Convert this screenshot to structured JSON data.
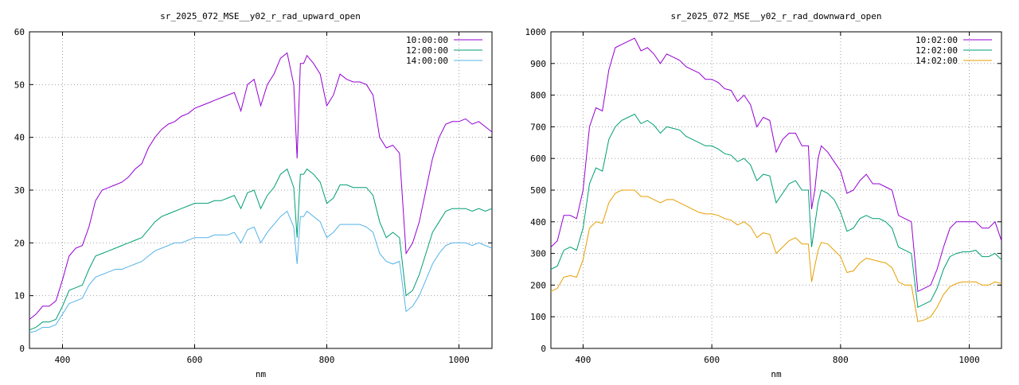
{
  "chart_data": [
    {
      "type": "line",
      "title": "sr_2025_072_MSE__y02_r_rad_upward_open",
      "xlabel": "nm",
      "ylabel": "",
      "xlim": [
        350,
        1050
      ],
      "ylim": [
        0,
        60
      ],
      "xticks": [
        400,
        600,
        800,
        1000
      ],
      "yticks": [
        0,
        10,
        20,
        30,
        40,
        50,
        60
      ],
      "grid": true,
      "legend": "top-right",
      "x": [
        350,
        360,
        370,
        380,
        390,
        400,
        410,
        420,
        430,
        440,
        450,
        460,
        470,
        480,
        490,
        500,
        510,
        520,
        530,
        540,
        550,
        560,
        570,
        580,
        590,
        600,
        610,
        620,
        630,
        640,
        650,
        660,
        670,
        680,
        690,
        700,
        710,
        720,
        730,
        740,
        750,
        755,
        760,
        765,
        770,
        780,
        790,
        800,
        810,
        820,
        830,
        840,
        850,
        860,
        870,
        880,
        890,
        900,
        910,
        920,
        930,
        940,
        950,
        960,
        970,
        980,
        990,
        1000,
        1010,
        1020,
        1030,
        1040,
        1050
      ],
      "series": [
        {
          "name": "10:00:00",
          "color": "#9400d3",
          "values": [
            5.5,
            6.5,
            8.0,
            8.0,
            9.0,
            13.0,
            17.5,
            19.0,
            19.5,
            23.0,
            28.0,
            30.0,
            30.5,
            31.0,
            31.5,
            32.5,
            34.0,
            35.0,
            38.0,
            40.0,
            41.5,
            42.5,
            43.0,
            44.0,
            44.5,
            45.5,
            46.0,
            46.5,
            47.0,
            47.5,
            48.0,
            48.5,
            45.0,
            50.0,
            51.0,
            46.0,
            50.0,
            52.0,
            55.0,
            56.0,
            50.0,
            36.0,
            54.0,
            54.0,
            55.5,
            54.0,
            52.0,
            46.0,
            48.0,
            52.0,
            51.0,
            50.5,
            50.5,
            50.0,
            48.0,
            40.0,
            38.0,
            38.5,
            37.0,
            18.0,
            20.0,
            24.0,
            30.0,
            36.0,
            40.0,
            42.5,
            43.0,
            43.0,
            43.5,
            42.5,
            43.0,
            42.0,
            41.0
          ]
        },
        {
          "name": "12:00:00",
          "color": "#009e73",
          "values": [
            3.5,
            4.0,
            5.0,
            5.0,
            5.5,
            8.0,
            11.0,
            11.5,
            12.0,
            15.0,
            17.5,
            18.0,
            18.5,
            19.0,
            19.5,
            20.0,
            20.5,
            21.0,
            22.5,
            24.0,
            25.0,
            25.5,
            26.0,
            26.5,
            27.0,
            27.5,
            27.5,
            27.5,
            28.0,
            28.0,
            28.5,
            29.0,
            26.5,
            29.5,
            30.0,
            26.5,
            29.0,
            30.5,
            33.0,
            34.0,
            30.5,
            21.0,
            33.0,
            33.0,
            34.0,
            33.0,
            31.5,
            27.5,
            28.5,
            31.0,
            31.0,
            30.5,
            30.5,
            30.5,
            29.0,
            24.0,
            21.0,
            22.0,
            21.0,
            10.0,
            11.0,
            14.0,
            18.0,
            22.0,
            24.0,
            26.0,
            26.5,
            26.5,
            26.5,
            26.0,
            26.5,
            26.0,
            26.5
          ]
        },
        {
          "name": "14:00:00",
          "color": "#56b4e9",
          "values": [
            3.0,
            3.3,
            4.0,
            4.0,
            4.5,
            6.5,
            8.5,
            9.0,
            9.5,
            12.0,
            13.5,
            14.0,
            14.5,
            15.0,
            15.0,
            15.5,
            16.0,
            16.5,
            17.5,
            18.5,
            19.0,
            19.5,
            20.0,
            20.0,
            20.5,
            21.0,
            21.0,
            21.0,
            21.5,
            21.5,
            21.5,
            22.0,
            20.0,
            22.5,
            23.0,
            20.0,
            22.0,
            23.5,
            25.0,
            26.0,
            23.0,
            16.0,
            25.0,
            25.0,
            26.0,
            25.0,
            24.0,
            21.0,
            22.0,
            23.5,
            23.5,
            23.5,
            23.5,
            23.0,
            22.0,
            18.0,
            16.5,
            16.0,
            16.5,
            7.0,
            8.0,
            10.0,
            13.0,
            16.0,
            18.0,
            19.5,
            20.0,
            20.0,
            20.0,
            19.5,
            20.0,
            19.5,
            19.0
          ]
        }
      ]
    },
    {
      "type": "line",
      "title": "sr_2025_072_MSE__y02_r_rad_downward_open",
      "xlabel": "nm",
      "ylabel": "",
      "xlim": [
        350,
        1050
      ],
      "ylim": [
        0,
        1000
      ],
      "xticks": [
        400,
        600,
        800,
        1000
      ],
      "yticks": [
        0,
        100,
        200,
        300,
        400,
        500,
        600,
        700,
        800,
        900,
        1000
      ],
      "grid": true,
      "legend": "top-right",
      "x": [
        350,
        360,
        370,
        380,
        390,
        400,
        410,
        420,
        430,
        440,
        450,
        460,
        470,
        480,
        490,
        500,
        510,
        520,
        530,
        540,
        550,
        560,
        570,
        580,
        590,
        600,
        610,
        620,
        630,
        640,
        650,
        660,
        670,
        680,
        690,
        700,
        710,
        720,
        730,
        740,
        750,
        755,
        760,
        765,
        770,
        780,
        790,
        800,
        810,
        820,
        830,
        840,
        850,
        860,
        870,
        880,
        890,
        900,
        910,
        920,
        930,
        940,
        950,
        960,
        970,
        980,
        990,
        1000,
        1010,
        1020,
        1030,
        1040,
        1050
      ],
      "series": [
        {
          "name": "10:02:00",
          "color": "#9400d3",
          "values": [
            320,
            340,
            420,
            420,
            410,
            500,
            700,
            760,
            750,
            880,
            950,
            960,
            970,
            980,
            940,
            950,
            930,
            900,
            930,
            920,
            910,
            890,
            880,
            870,
            850,
            850,
            840,
            820,
            815,
            780,
            800,
            770,
            700,
            730,
            720,
            620,
            660,
            680,
            680,
            640,
            640,
            440,
            500,
            600,
            640,
            620,
            590,
            560,
            490,
            500,
            530,
            550,
            520,
            520,
            510,
            500,
            420,
            410,
            400,
            180,
            190,
            200,
            250,
            320,
            380,
            400,
            400,
            400,
            400,
            380,
            380,
            400,
            340
          ]
        },
        {
          "name": "12:02:00",
          "color": "#009e73",
          "values": [
            250,
            260,
            310,
            320,
            310,
            380,
            520,
            570,
            560,
            660,
            700,
            720,
            730,
            740,
            710,
            720,
            705,
            680,
            700,
            695,
            690,
            670,
            660,
            650,
            640,
            640,
            630,
            615,
            610,
            590,
            600,
            580,
            530,
            550,
            545,
            460,
            490,
            520,
            530,
            500,
            500,
            320,
            390,
            460,
            500,
            490,
            470,
            430,
            370,
            380,
            410,
            420,
            410,
            410,
            400,
            380,
            320,
            310,
            300,
            130,
            140,
            150,
            190,
            250,
            290,
            300,
            305,
            305,
            310,
            290,
            290,
            300,
            280
          ]
        },
        {
          "name": "14:02:00",
          "color": "#e69f00",
          "values": [
            180,
            190,
            225,
            230,
            225,
            280,
            380,
            400,
            395,
            460,
            490,
            500,
            500,
            500,
            480,
            480,
            470,
            460,
            470,
            470,
            460,
            450,
            440,
            430,
            425,
            425,
            420,
            410,
            405,
            390,
            400,
            385,
            350,
            365,
            360,
            300,
            320,
            340,
            350,
            330,
            330,
            210,
            260,
            310,
            335,
            330,
            310,
            290,
            240,
            245,
            270,
            285,
            280,
            275,
            270,
            255,
            210,
            200,
            200,
            85,
            90,
            100,
            130,
            170,
            195,
            205,
            210,
            210,
            210,
            200,
            200,
            210,
            205
          ]
        }
      ]
    }
  ]
}
